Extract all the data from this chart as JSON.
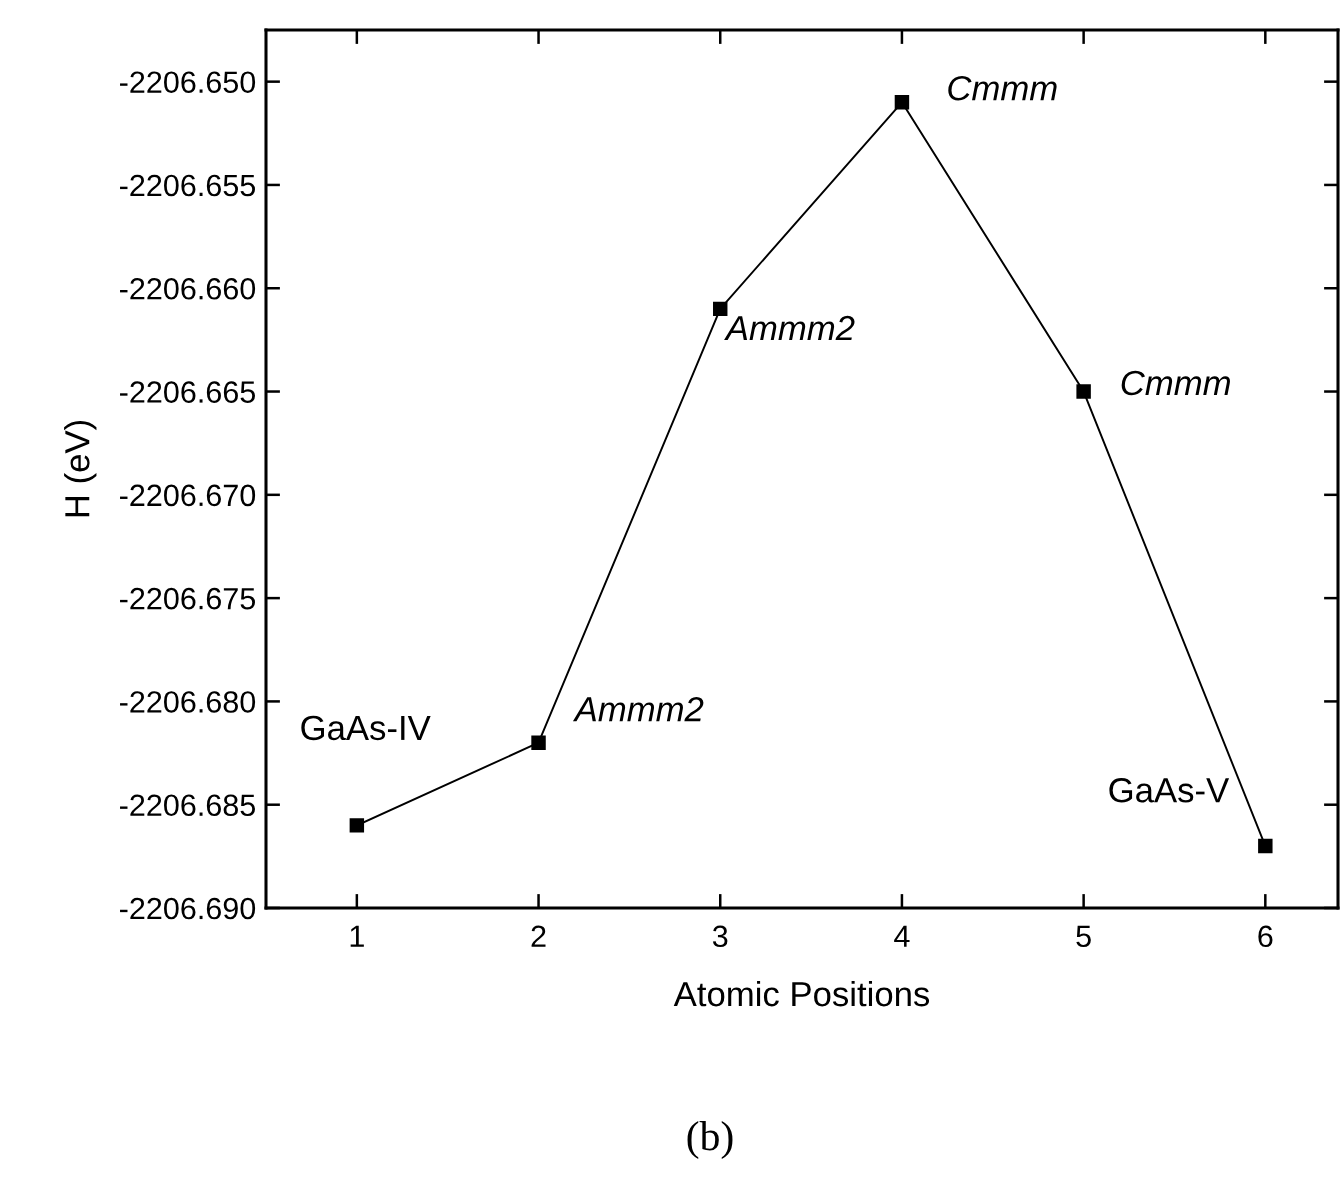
{
  "chart_data": {
    "type": "line",
    "xlabel": "Atomic Positions",
    "ylabel": "H (eV)",
    "x": [
      1,
      2,
      3,
      4,
      5,
      6
    ],
    "series": [
      {
        "color": "#000000",
        "values": [
          -2206.686,
          -2206.682,
          -2206.661,
          -2206.651,
          -2206.665,
          -2206.687
        ]
      }
    ],
    "marker": "square",
    "line_style": "solid",
    "grid": false,
    "xlim": [
      0.5,
      6.4
    ],
    "ylim": [
      -2206.69,
      -2206.6475
    ],
    "xticks": [
      1,
      2,
      3,
      4,
      5,
      6
    ],
    "yticks": [
      {
        "value": -2206.69,
        "label": "-2206.690"
      },
      {
        "value": -2206.685,
        "label": "-2206.685"
      },
      {
        "value": -2206.68,
        "label": "-2206.680"
      },
      {
        "value": -2206.675,
        "label": "-2206.675"
      },
      {
        "value": -2206.67,
        "label": "-2206.670"
      },
      {
        "value": -2206.665,
        "label": "-2206.665"
      },
      {
        "value": -2206.66,
        "label": "-2206.660"
      },
      {
        "value": -2206.655,
        "label": "-2206.655"
      },
      {
        "value": -2206.65,
        "label": "-2206.650"
      }
    ],
    "annotations": [
      {
        "text": "GaAs-IV",
        "x": 1,
        "y": -2206.686
      },
      {
        "text": "Ammm2",
        "x": 2,
        "y": -2206.682
      },
      {
        "text": "Ammm2",
        "x": 3,
        "y": -2206.661
      },
      {
        "text": "Cmmm",
        "x": 4,
        "y": -2206.651
      },
      {
        "text": "Cmmm",
        "x": 5,
        "y": -2206.665
      },
      {
        "text": "GaAs-V",
        "x": 6,
        "y": -2206.687
      },
      "(b)"
    ]
  }
}
